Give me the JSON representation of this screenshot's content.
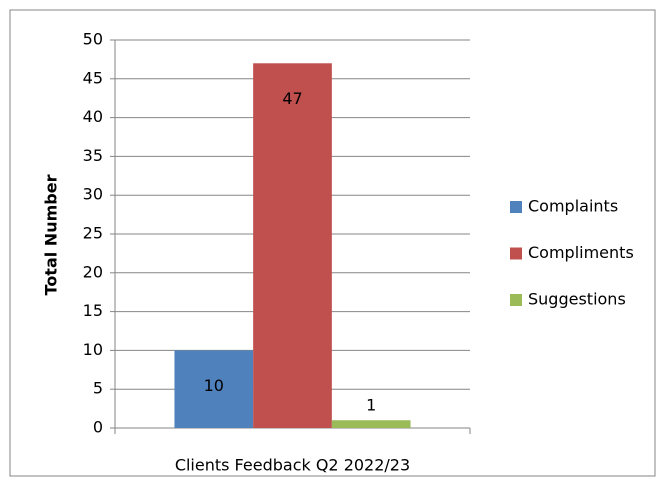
{
  "chart_data": {
    "type": "bar",
    "categories": [
      "Clients Feedback Q2 2022/23"
    ],
    "ylabel": "Total Number",
    "series": [
      {
        "name": "Complaints",
        "color": "#4f81bd",
        "values": [
          10
        ]
      },
      {
        "name": "Compliments",
        "color": "#c0504d",
        "values": [
          47
        ]
      },
      {
        "name": "Suggestions",
        "color": "#9bbb59",
        "values": [
          1
        ]
      }
    ],
    "ylim": [
      0,
      50
    ],
    "yticks": [
      0,
      5,
      10,
      15,
      20,
      25,
      30,
      35,
      40,
      45,
      50
    ],
    "grid": true,
    "legend": "right"
  }
}
